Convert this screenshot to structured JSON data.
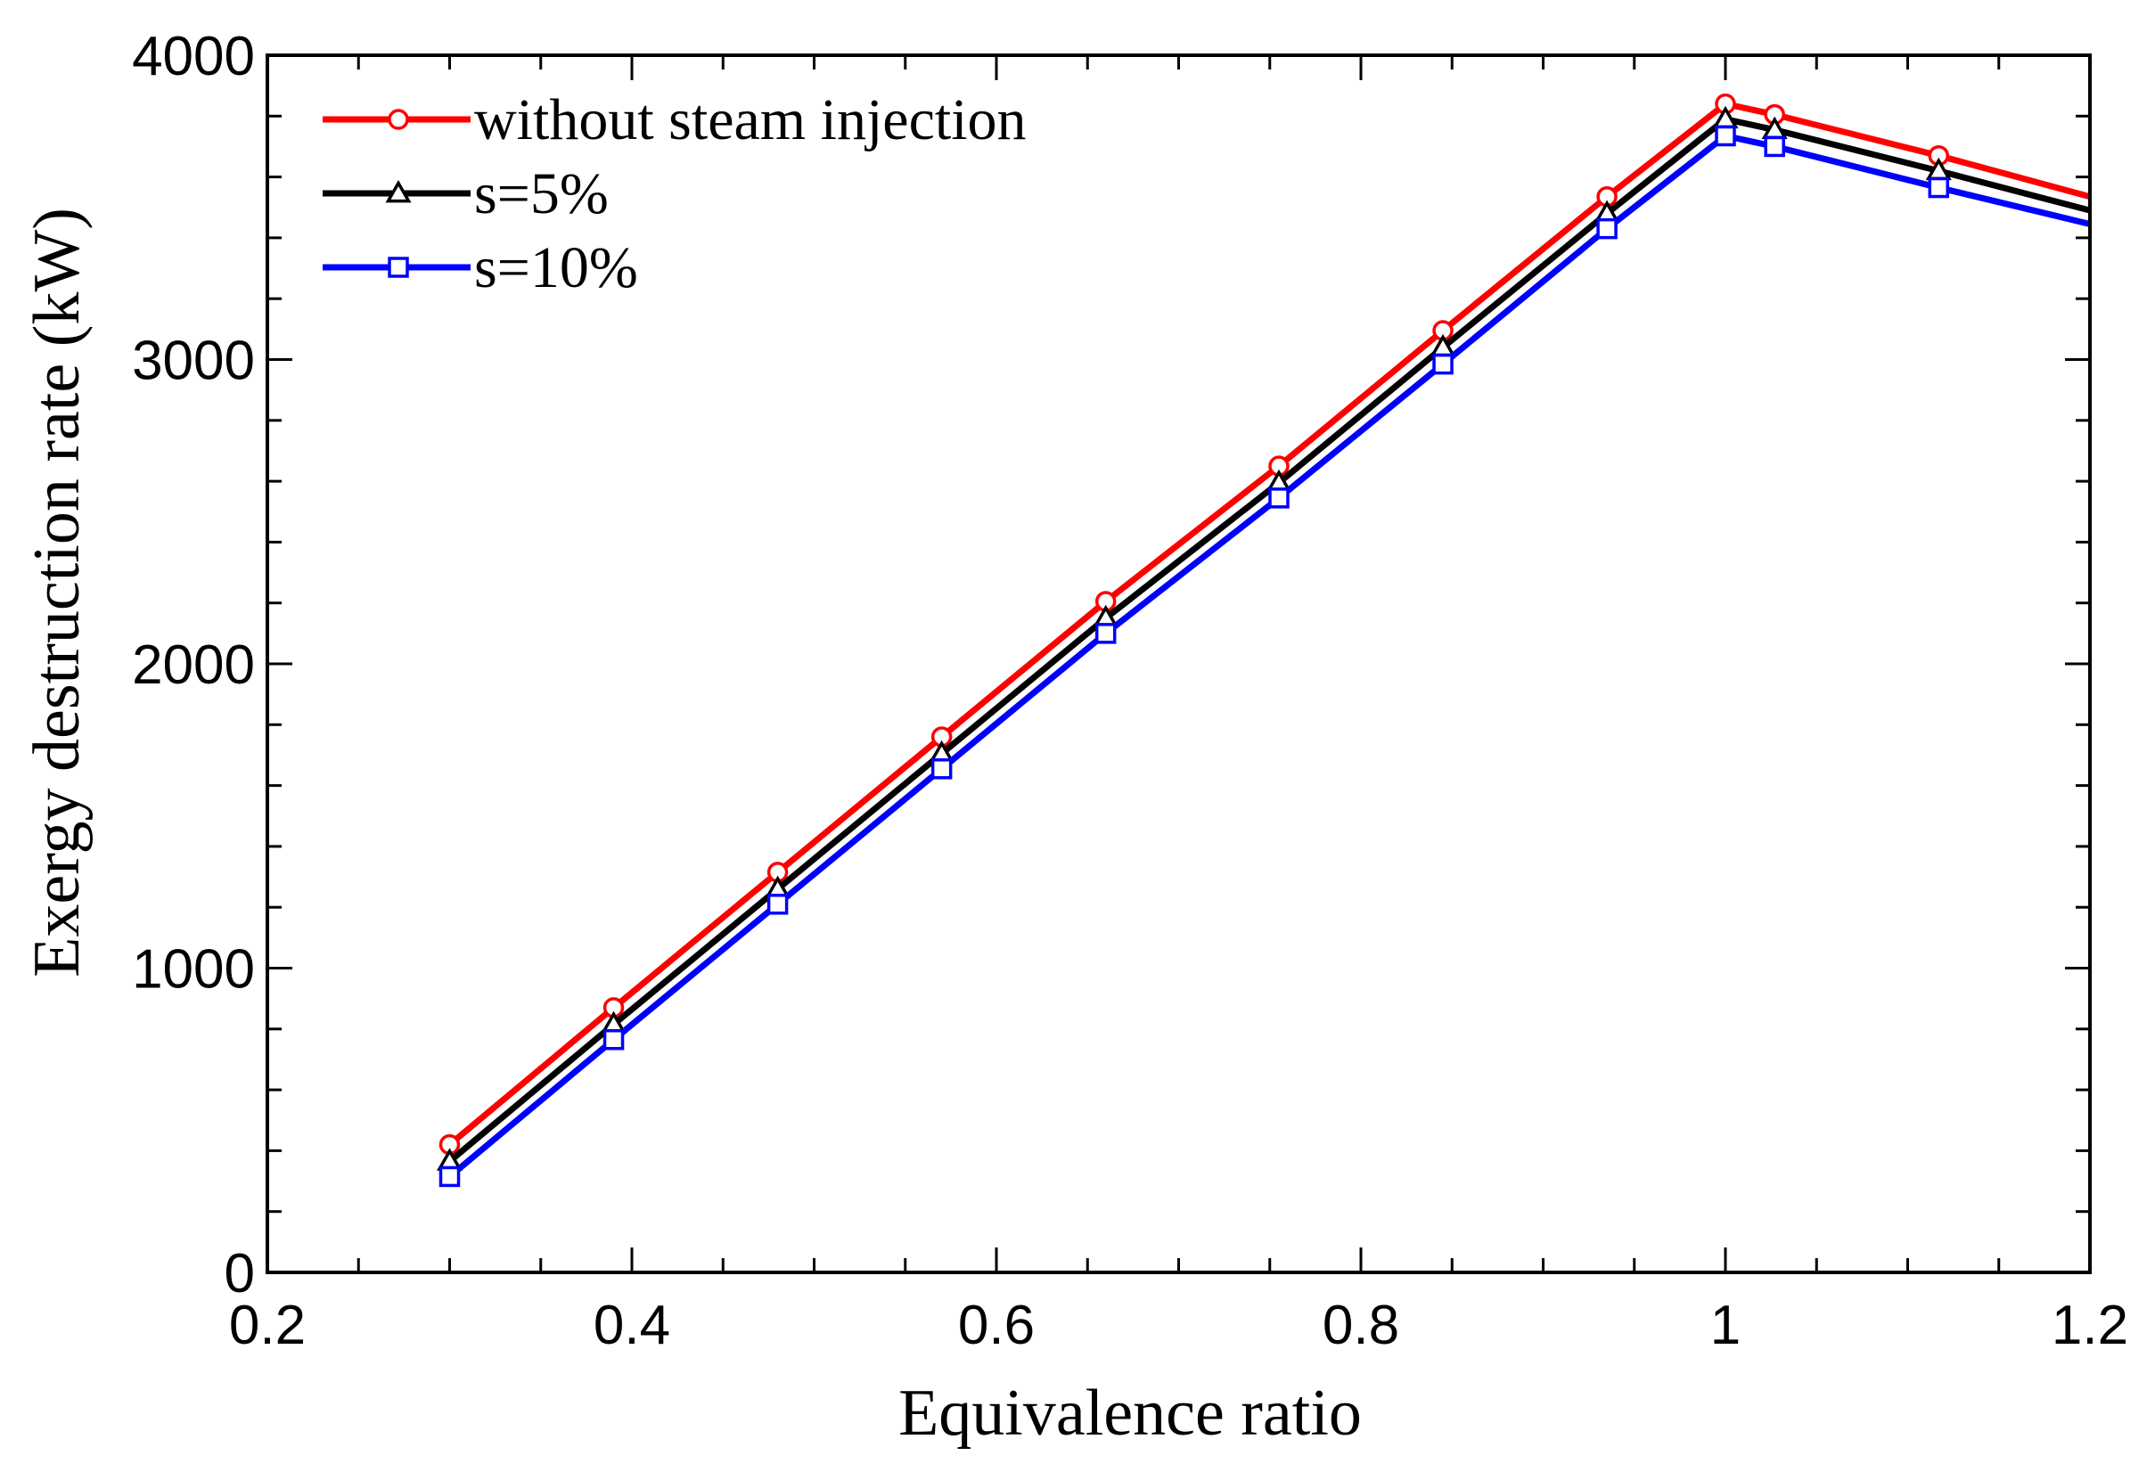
{
  "chart_data": {
    "type": "line",
    "title": "",
    "xlabel": "Equivalence ratio",
    "ylabel": "Exergy destruction rate (kW)",
    "xlim": [
      0.2,
      1.2
    ],
    "ylim": [
      0,
      4000
    ],
    "x_ticks": [
      0.2,
      0.4,
      0.6,
      0.8,
      1,
      1.2
    ],
    "x_tick_labels": [
      "0.2",
      "0.4",
      "0.6",
      "0.8",
      "1",
      "1.2"
    ],
    "y_ticks": [
      0,
      1000,
      2000,
      3000,
      4000
    ],
    "y_tick_labels": [
      "0",
      "1000",
      "2000",
      "3000",
      "4000"
    ],
    "grid": false,
    "legend_position": "top-left",
    "series": [
      {
        "name": "without steam injection",
        "color": "#ff0000",
        "marker": "circle",
        "x": [
          0.3,
          0.39,
          0.48,
          0.57,
          0.66,
          0.755,
          0.845,
          0.935,
          1.0,
          1.027,
          1.117,
          1.2
        ],
        "values": [
          420,
          870,
          1315,
          1760,
          2205,
          2650,
          3095,
          3535,
          3840,
          3805,
          3670,
          3535
        ]
      },
      {
        "name": "s=5%",
        "color": "#000000",
        "marker": "triangle",
        "x": [
          0.3,
          0.39,
          0.48,
          0.57,
          0.66,
          0.755,
          0.845,
          0.935,
          1.0,
          1.027,
          1.117,
          1.2
        ],
        "values": [
          365,
          815,
          1260,
          1705,
          2150,
          2595,
          3040,
          3480,
          3790,
          3755,
          3620,
          3490
        ]
      },
      {
        "name": "s=10%",
        "color": "#0000ff",
        "marker": "square",
        "x": [
          0.3,
          0.39,
          0.48,
          0.57,
          0.66,
          0.755,
          0.845,
          0.935,
          1.0,
          1.027,
          1.117,
          1.2
        ],
        "values": [
          315,
          765,
          1210,
          1655,
          2100,
          2545,
          2985,
          3430,
          3735,
          3700,
          3565,
          3445
        ]
      }
    ]
  }
}
